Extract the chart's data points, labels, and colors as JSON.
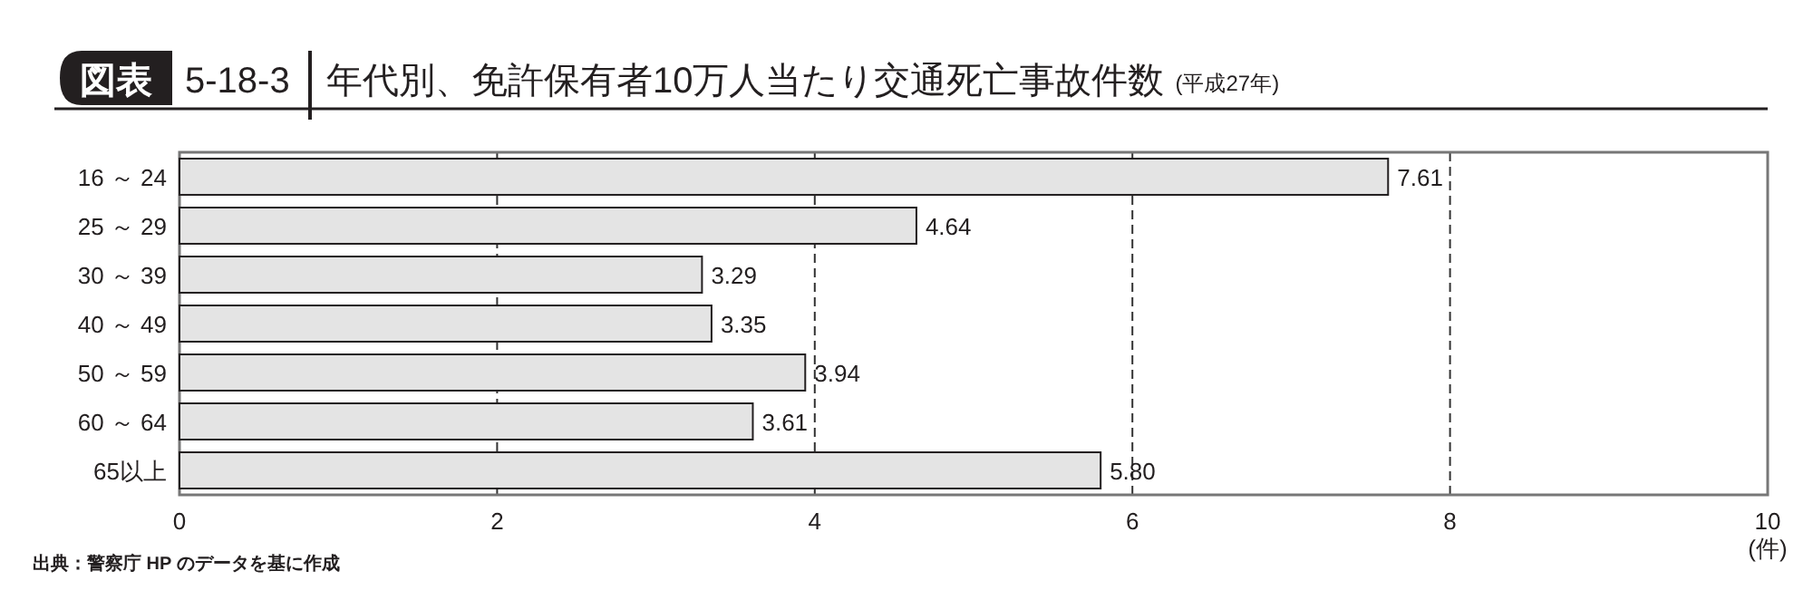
{
  "chart_data": {
    "type": "bar",
    "orientation": "horizontal",
    "title": "年代別、免許保有者10万人当たり交通死亡事故件数",
    "subtitle": "(平成27年)",
    "categories": [
      "16 ～ 24",
      "25 ～ 29",
      "30 ～ 39",
      "40 ～ 49",
      "50 ～ 59",
      "60 ～ 64",
      "65以上"
    ],
    "values": [
      7.61,
      4.64,
      3.29,
      3.35,
      3.94,
      3.61,
      5.8
    ],
    "value_labels": [
      "7.61",
      "4.64",
      "3.29",
      "3.35",
      "3.94",
      "3.61",
      "5.80"
    ],
    "color": "#e4e4e4",
    "xlim": [
      0,
      10
    ],
    "xticks": [
      0,
      2,
      4,
      6,
      8,
      10
    ],
    "xlabel": "(件)",
    "grid": "x",
    "line_style": "dashed",
    "annotations": [
      "図表",
      "5-18-3",
      "出典：警察庁 HP のデータを基に作成"
    ]
  }
}
